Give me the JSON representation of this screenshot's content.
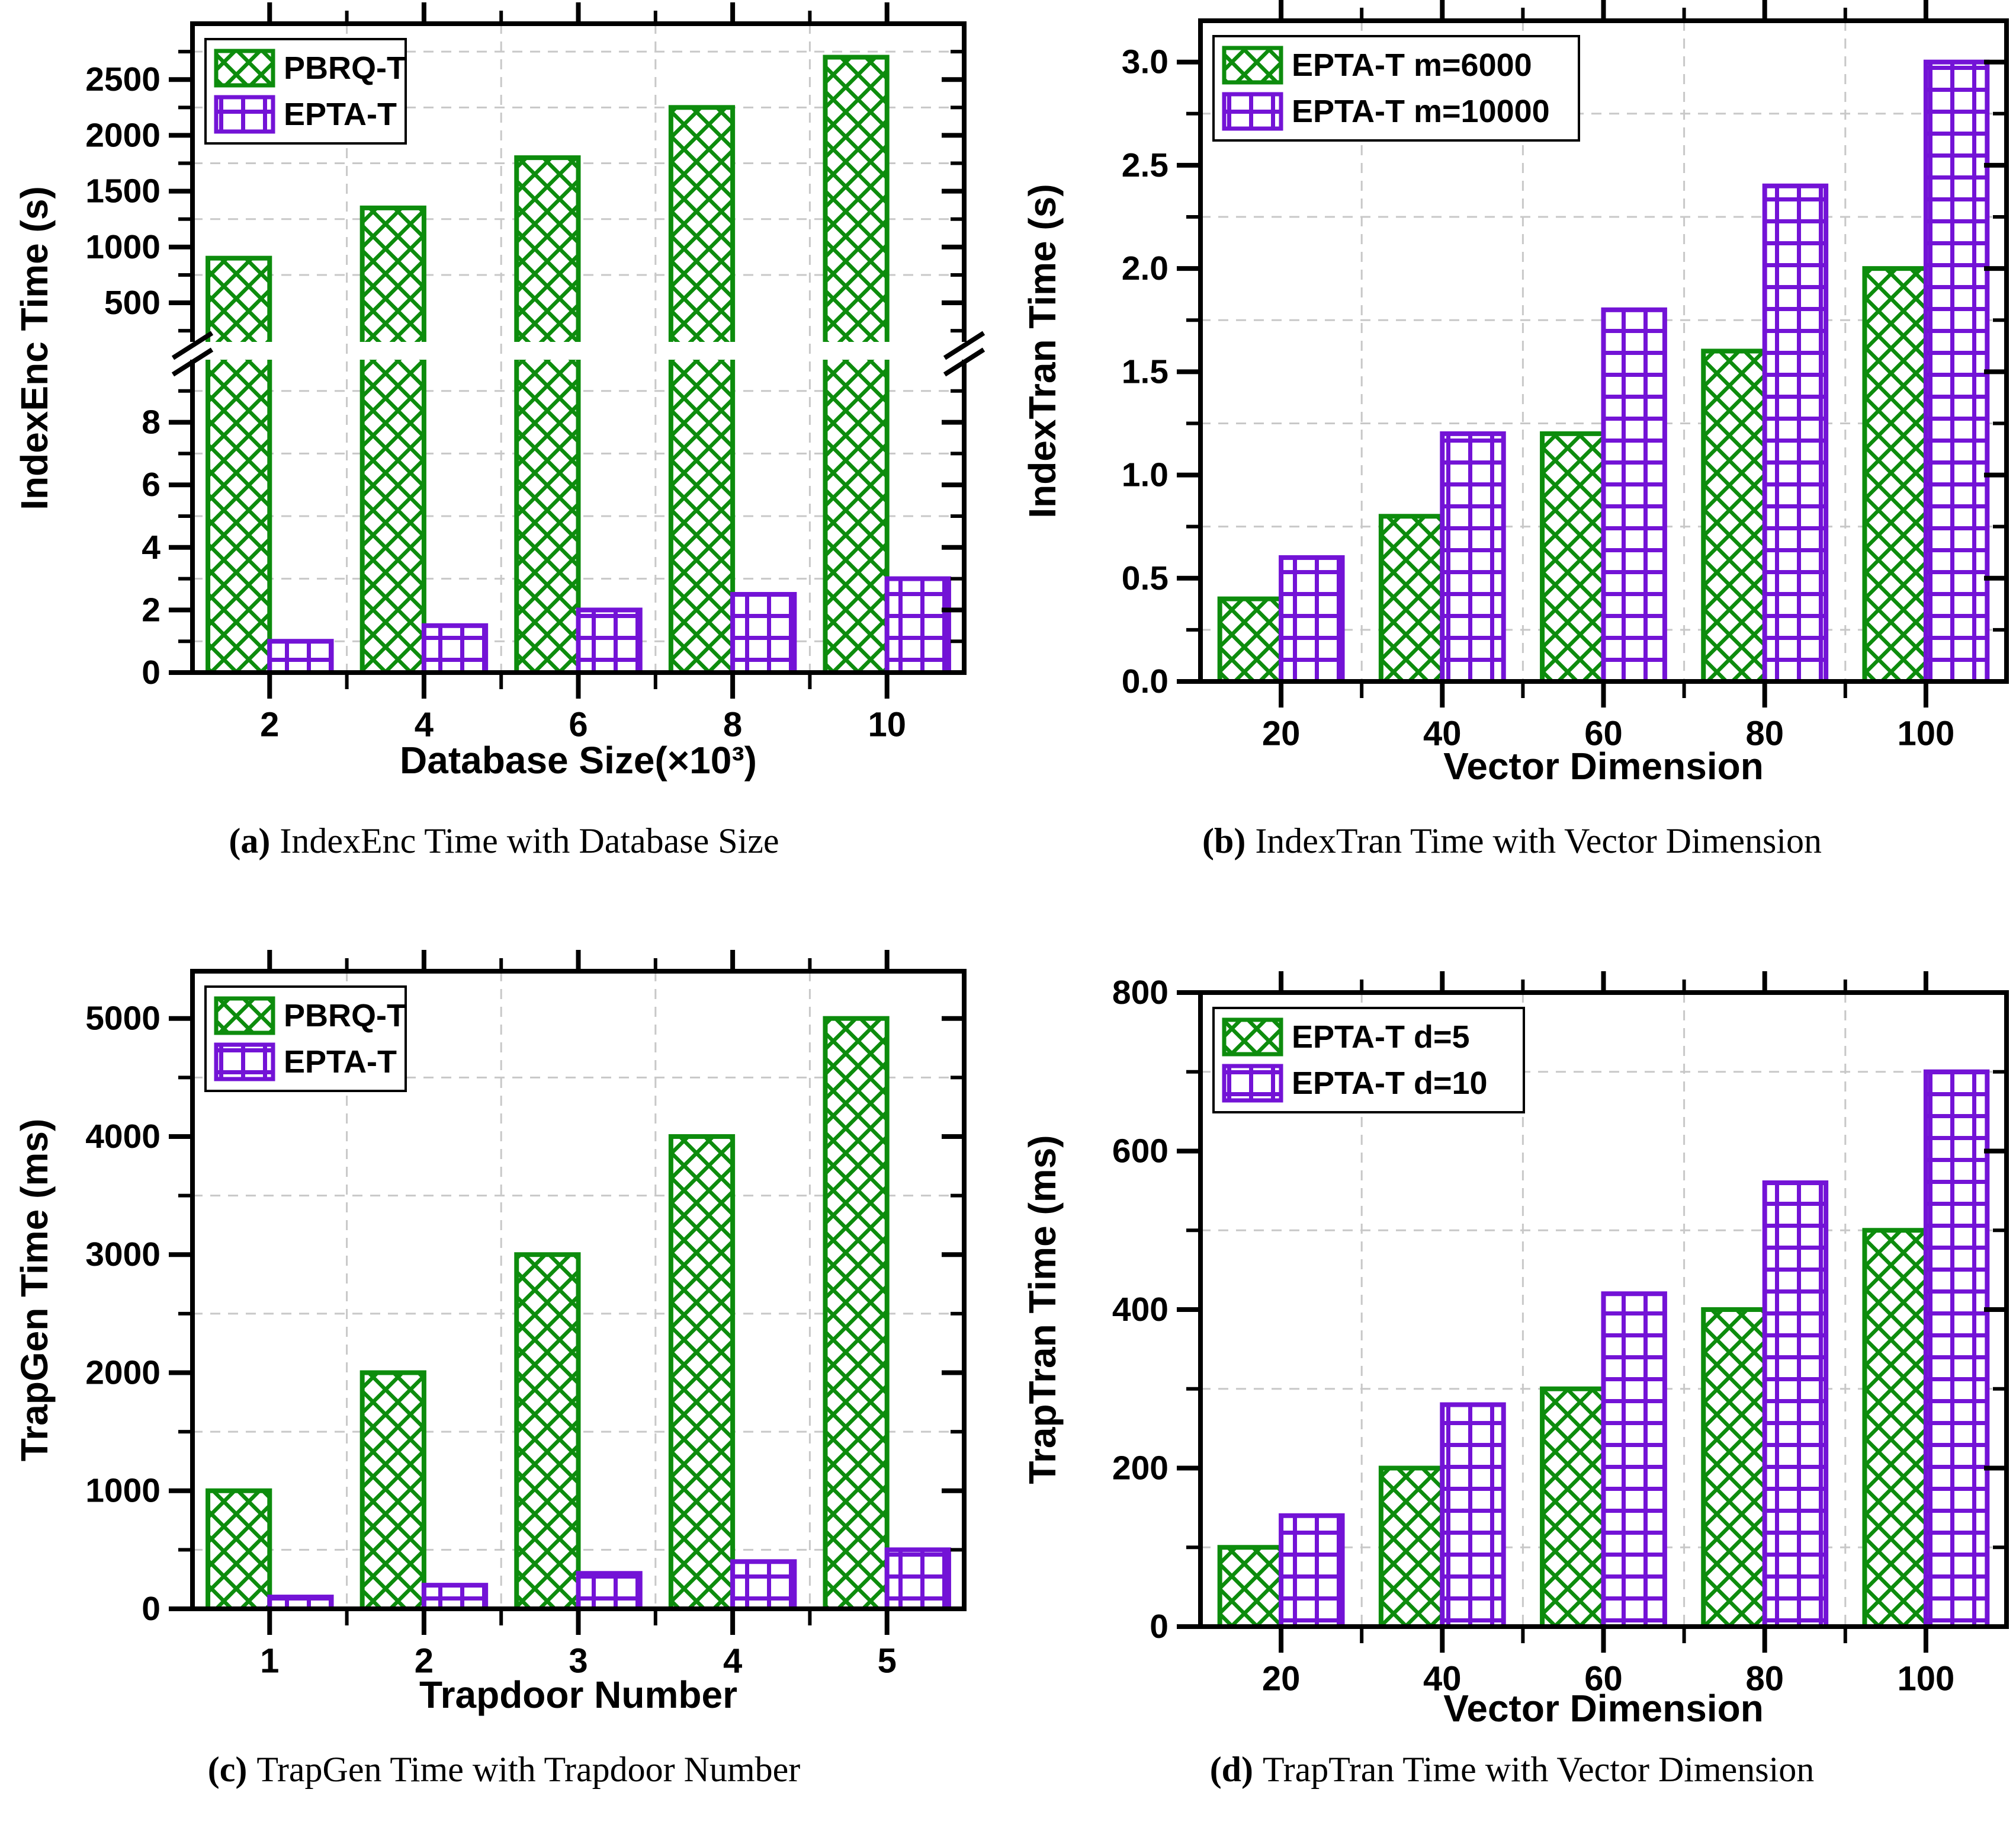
{
  "colors": {
    "series_green": "#0d8c0d",
    "series_purple": "#7313d6",
    "grid": "#c8c8c8",
    "axis": "#000000",
    "background": "#ffffff",
    "legend_border": "#000000"
  },
  "chart_data": [
    {
      "id": "a",
      "type": "bar",
      "caption": {
        "label": "(a)",
        "text": "IndexEnc Time with Database Size"
      },
      "xlabel": "Database Size(×10³)",
      "ylabel": "IndexEnc Time (s)",
      "x_categories": [
        "2",
        "4",
        "6",
        "8",
        "10"
      ],
      "series": [
        {
          "name": "PBRQ-T",
          "color_key": "green",
          "pattern": "crosshatch",
          "values": [
            900,
            1350,
            1800,
            2250,
            2700
          ]
        },
        {
          "name": "EPTA-T",
          "color_key": "purple",
          "pattern": "grid",
          "values": [
            1.0,
            1.5,
            2.0,
            2.5,
            3.0
          ]
        }
      ],
      "y_axis_broken": true,
      "y_axis_lower": {
        "range": [
          0,
          10
        ],
        "ticks": [
          0,
          2,
          4,
          6,
          8
        ],
        "tick_labels": [
          "0",
          "2",
          "4",
          "6",
          "8"
        ],
        "minor_ticks": [
          1,
          3,
          5,
          7,
          9
        ],
        "grid_lines": [
          1,
          3,
          5,
          7,
          9
        ]
      },
      "y_axis_upper": {
        "range": [
          150,
          3000
        ],
        "ticks": [
          500,
          1000,
          1500,
          2000,
          2500
        ],
        "tick_labels": [
          "500",
          "1000",
          "1500",
          "2000",
          "2500"
        ],
        "minor_ticks": [
          250,
          750,
          1250,
          1750,
          2250,
          2750
        ],
        "grid_lines": [
          750,
          1250,
          1750,
          2250,
          2750
        ]
      },
      "legend": {
        "position": "top-left",
        "entries": [
          "PBRQ-T",
          "EPTA-T"
        ]
      },
      "grid_dashed": true
    },
    {
      "id": "b",
      "type": "bar",
      "caption": {
        "label": "(b)",
        "text": "IndexTran Time with Vector Dimension"
      },
      "xlabel": "Vector Dimension",
      "ylabel": "IndexTran Time (s)",
      "x_categories": [
        "20",
        "40",
        "60",
        "80",
        "100"
      ],
      "series": [
        {
          "name": "EPTA-T  m=6000",
          "color_key": "green",
          "pattern": "crosshatch",
          "values": [
            0.4,
            0.8,
            1.2,
            1.6,
            2.0
          ]
        },
        {
          "name": "EPTA-T  m=10000",
          "color_key": "purple",
          "pattern": "grid",
          "values": [
            0.6,
            1.2,
            1.8,
            2.4,
            3.0
          ]
        }
      ],
      "y_axis_broken": false,
      "y_axis": {
        "range": [
          0,
          3.2
        ],
        "ticks": [
          0,
          0.5,
          1.0,
          1.5,
          2.0,
          2.5,
          3.0
        ],
        "tick_labels": [
          "0.0",
          "0.5",
          "1.0",
          "1.5",
          "2.0",
          "2.5",
          "3.0"
        ],
        "minor_ticks": [
          0.25,
          0.75,
          1.25,
          1.75,
          2.25,
          2.75
        ],
        "grid_lines": [
          0.25,
          0.75,
          1.25,
          1.75,
          2.25,
          2.75
        ]
      },
      "legend": {
        "position": "top-left",
        "entries": [
          "EPTA-T  m=6000",
          "EPTA-T  m=10000"
        ]
      },
      "grid_dashed": true
    },
    {
      "id": "c",
      "type": "bar",
      "caption": {
        "label": "(c)",
        "text": "TrapGen Time with Trapdoor Number"
      },
      "xlabel": "Trapdoor Number",
      "ylabel": "TrapGen Time (ms)",
      "x_categories": [
        "1",
        "2",
        "3",
        "4",
        "5"
      ],
      "series": [
        {
          "name": "PBRQ-T",
          "color_key": "green",
          "pattern": "crosshatch",
          "values": [
            1000,
            2000,
            3000,
            4000,
            5000
          ]
        },
        {
          "name": "EPTA-T",
          "color_key": "purple",
          "pattern": "grid",
          "values": [
            100,
            200,
            300,
            400,
            500
          ]
        }
      ],
      "y_axis_broken": false,
      "y_axis": {
        "range": [
          0,
          5400
        ],
        "ticks": [
          0,
          1000,
          2000,
          3000,
          4000,
          5000
        ],
        "tick_labels": [
          "0",
          "1000",
          "2000",
          "3000",
          "4000",
          "5000"
        ],
        "minor_ticks": [
          500,
          1500,
          2500,
          3500,
          4500
        ],
        "grid_lines": [
          500,
          1500,
          2500,
          3500,
          4500
        ]
      },
      "legend": {
        "position": "top-left",
        "entries": [
          "PBRQ-T",
          "EPTA-T"
        ]
      },
      "grid_dashed": true
    },
    {
      "id": "d",
      "type": "bar",
      "caption": {
        "label": "(d)",
        "text": "TrapTran Time with Vector Dimension"
      },
      "xlabel": "Vector Dimension",
      "ylabel": "TrapTran Time (ms)",
      "x_categories": [
        "20",
        "40",
        "60",
        "80",
        "100"
      ],
      "series": [
        {
          "name": "EPTA-T  d=5",
          "color_key": "green",
          "pattern": "crosshatch",
          "values": [
            100,
            200,
            300,
            400,
            500
          ]
        },
        {
          "name": "EPTA-T  d=10",
          "color_key": "purple",
          "pattern": "grid",
          "values": [
            140,
            280,
            420,
            560,
            700
          ]
        }
      ],
      "y_axis_broken": false,
      "y_axis": {
        "range": [
          0,
          800
        ],
        "ticks": [
          0,
          200,
          400,
          600,
          800
        ],
        "tick_labels": [
          "0",
          "200",
          "400",
          "600",
          "800"
        ],
        "minor_ticks": [
          100,
          300,
          500,
          700
        ],
        "grid_lines": [
          100,
          300,
          500,
          700
        ]
      },
      "legend": {
        "position": "top-left",
        "entries": [
          "EPTA-T  d=5",
          "EPTA-T  d=10"
        ]
      },
      "grid_dashed": true
    }
  ]
}
